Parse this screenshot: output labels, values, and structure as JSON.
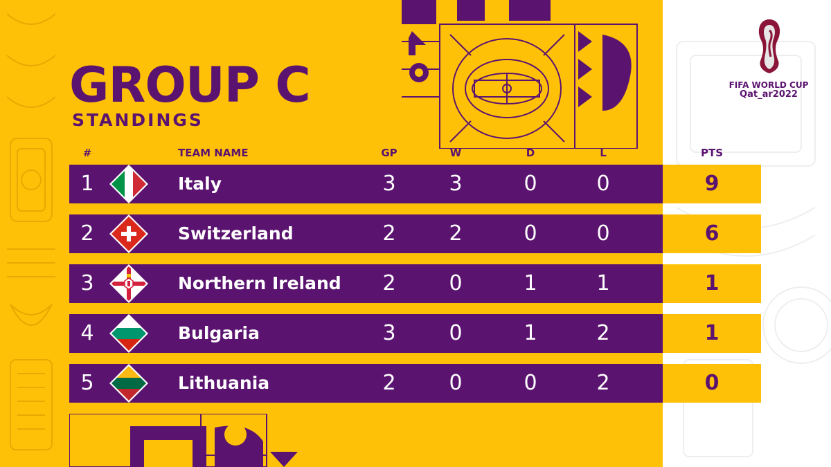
{
  "header": {
    "title": "GROUP C",
    "subtitle": "STANDINGS"
  },
  "columns": {
    "rank": "#",
    "team": "TEAM NAME",
    "gp": "GP",
    "w": "W",
    "d": "D",
    "l": "L",
    "pts": "PTS"
  },
  "rows": [
    {
      "rank": "1",
      "team": "Italy",
      "gp": "3",
      "w": "3",
      "d": "0",
      "l": "0",
      "pts": "9",
      "flag": "italy-flag-icon"
    },
    {
      "rank": "2",
      "team": "Switzerland",
      "gp": "2",
      "w": "2",
      "d": "0",
      "l": "0",
      "pts": "6",
      "flag": "switzerland-flag-icon"
    },
    {
      "rank": "3",
      "team": "Northern Ireland",
      "gp": "2",
      "w": "0",
      "d": "1",
      "l": "1",
      "pts": "1",
      "flag": "northern-ireland-flag-icon"
    },
    {
      "rank": "4",
      "team": "Bulgaria",
      "gp": "3",
      "w": "0",
      "d": "1",
      "l": "2",
      "pts": "1",
      "flag": "bulgaria-flag-icon"
    },
    {
      "rank": "5",
      "team": "Lithuania",
      "gp": "2",
      "w": "0",
      "d": "0",
      "l": "2",
      "pts": "0",
      "flag": "lithuania-flag-icon"
    }
  ],
  "branding": {
    "line1": "FIFA WORLD CUP",
    "line2": "Qat_ar2022"
  },
  "colors": {
    "gold": "#ffc107",
    "purple": "#5b1370",
    "maroon": "#8a1538"
  }
}
